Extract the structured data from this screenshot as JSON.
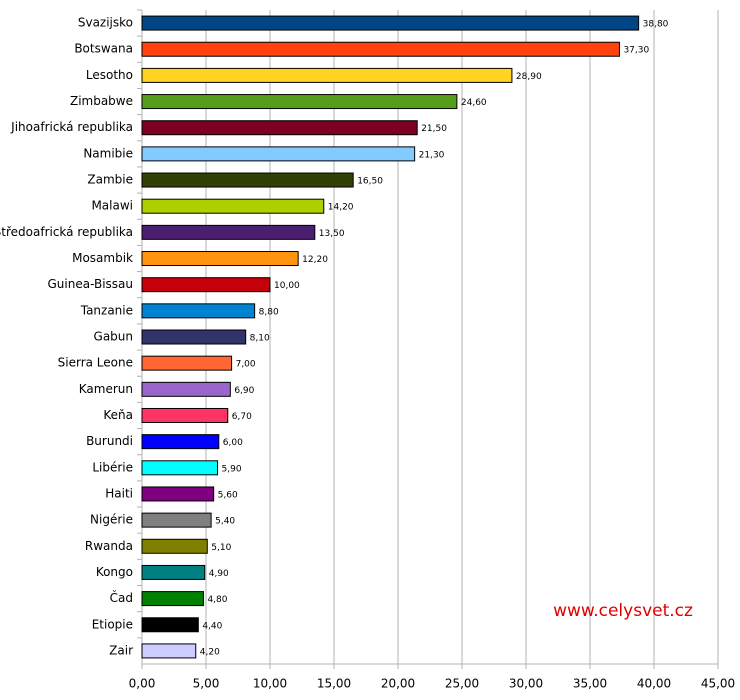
{
  "chart_data": {
    "type": "barh",
    "categories": [
      "Svazijsko",
      "Botswana",
      "Lesotho",
      "Zimbabwe",
      "Jihoafrická republika",
      "Namibie",
      "Zambie",
      "Malawi",
      "Středoafrická republika",
      "Mosambik",
      "Guinea-Bissau",
      "Tanzanie",
      "Gabun",
      "Sierra Leone",
      "Kamerun",
      "Keňa",
      "Burundi",
      "Libérie",
      "Haiti",
      "Nigérie",
      "Rwanda",
      "Kongo",
      "Čad",
      "Etiopie",
      "Zair"
    ],
    "values": [
      38.8,
      37.3,
      28.9,
      24.6,
      21.5,
      21.3,
      16.5,
      14.2,
      13.5,
      12.2,
      10.0,
      8.8,
      8.1,
      7.0,
      6.9,
      6.7,
      6.0,
      5.9,
      5.6,
      5.4,
      5.1,
      4.9,
      4.8,
      4.4,
      4.2
    ],
    "value_labels": [
      "38,80",
      "37,30",
      "28,90",
      "24,60",
      "21,50",
      "21,30",
      "16,50",
      "14,20",
      "13,50",
      "12,20",
      "10,00",
      "8,80",
      "8,10",
      "7,00",
      "6,90",
      "6,70",
      "6,00",
      "5,90",
      "5,60",
      "5,40",
      "5,10",
      "4,90",
      "4,80",
      "4,40",
      "4,20"
    ],
    "colors": [
      "#004586",
      "#ff420e",
      "#ffd320",
      "#579d1c",
      "#7e0021",
      "#83caff",
      "#314004",
      "#aecf00",
      "#4b1f6f",
      "#ff950e",
      "#c5000b",
      "#0084d1",
      "#33336b",
      "#ff6633",
      "#9966cc",
      "#ff3366",
      "#0000ff",
      "#00ffff",
      "#800080",
      "#808080",
      "#808000",
      "#008080",
      "#008000",
      "#000000",
      "#ccccff"
    ],
    "xlim": [
      0,
      45
    ],
    "xticks": [
      {
        "value": 0,
        "label": "0,00"
      },
      {
        "value": 5,
        "label": "5,00"
      },
      {
        "value": 10,
        "label": "10,00"
      },
      {
        "value": 15,
        "label": "15,00"
      },
      {
        "value": 20,
        "label": "20,00"
      },
      {
        "value": 25,
        "label": "25,00"
      },
      {
        "value": 30,
        "label": "30,00"
      },
      {
        "value": 35,
        "label": "35,00"
      },
      {
        "value": 40,
        "label": "40,00"
      },
      {
        "value": 45,
        "label": "45,00"
      }
    ],
    "grid": true,
    "annotation": "www.celysvet.cz"
  }
}
